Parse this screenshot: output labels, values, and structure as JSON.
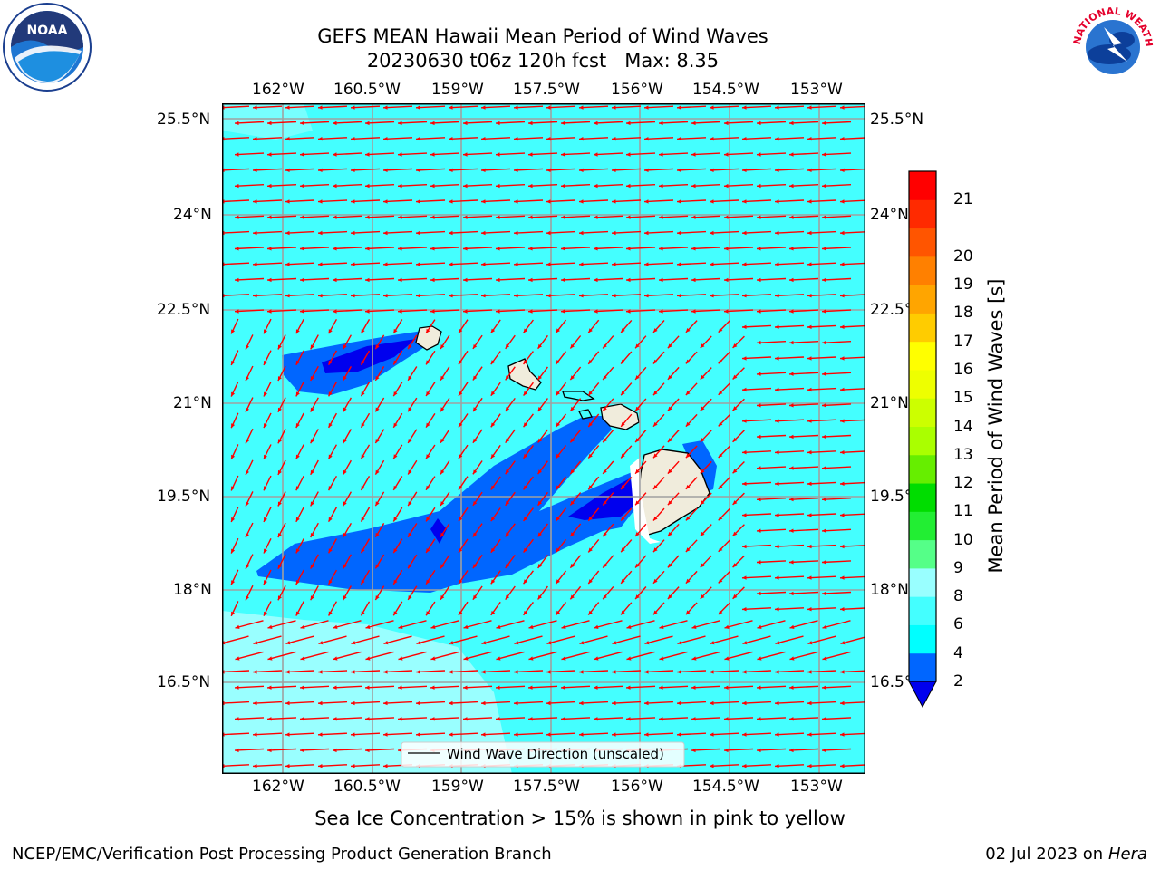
{
  "map": {
    "title_line1": "GEFS MEAN Hawaii Mean Period of Wind Waves",
    "title_line2": "20230630 t06z 120h fcst   Max: 8.35",
    "lon_ticks": [
      "162°W",
      "160.5°W",
      "159°W",
      "157.5°W",
      "156°W",
      "154.5°W",
      "153°W"
    ],
    "lat_ticks": [
      "25.5°N",
      "24°N",
      "22.5°N",
      "21°N",
      "19.5°N",
      "18°N",
      "16.5°N"
    ],
    "legend_label": "Wind Wave Direction (unscaled)",
    "colorbar": {
      "label": "Mean Period of Wind Waves [s]",
      "ticks": [
        "2",
        "4",
        "6",
        "8",
        "9",
        "10",
        "11",
        "12",
        "13",
        "14",
        "15",
        "16",
        "17",
        "18",
        "19",
        "20",
        "21"
      ],
      "colors": [
        "#0066ff",
        "#00ffff",
        "#44ffff",
        "#99ffff",
        "#55ff88",
        "#22ee33",
        "#00dd00",
        "#66ee00",
        "#aaff00",
        "#ccff00",
        "#eeff00",
        "#ffff00",
        "#ffcc00",
        "#ffa500",
        "#ff8000",
        "#ff5500",
        "#ff2a00",
        "#ff0000"
      ],
      "under_color": "#0000ee"
    },
    "colors": {
      "ocean_base": "#44ffff",
      "low_period": "#0066ff",
      "lowest_period": "#0000ee",
      "high_period": "#99ffff",
      "land": "#f0ecdc",
      "arrow": "#ff0000"
    },
    "sea_ice_note": "Sea Ice Concentration > 15% is shown in pink to yellow",
    "footer_left": "NCEP/EMC/Verification Post Processing Product Generation Branch",
    "footer_date": "02 Jul 2023 on ",
    "footer_host": "Hera"
  },
  "logos": {
    "noaa_text": "NOAA",
    "nws_text": "NATIONAL WEATHER SERVICE"
  }
}
